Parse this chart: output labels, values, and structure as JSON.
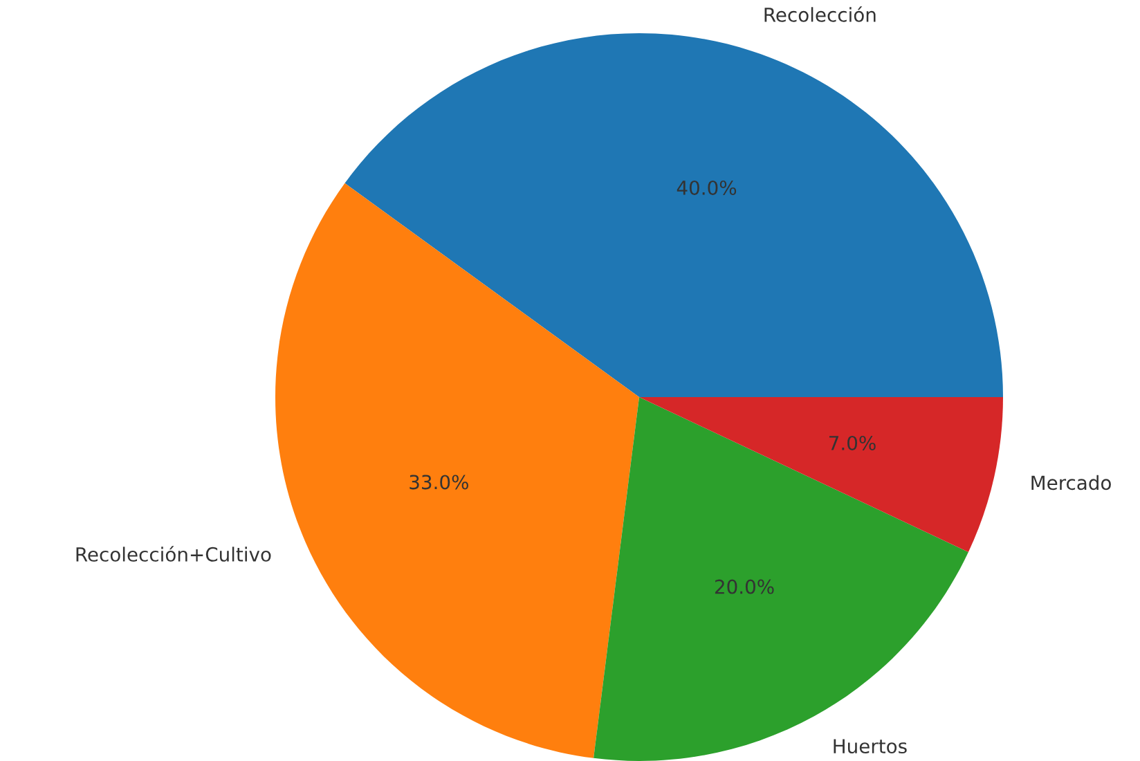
{
  "chart_data": {
    "type": "pie",
    "categories": [
      "Recolección",
      "Recolección+Cultivo",
      "Huertos",
      "Mercado"
    ],
    "values": [
      40,
      33,
      20,
      7
    ],
    "value_labels": [
      "40.0%",
      "33.0%",
      "20.0%",
      "7.0%"
    ],
    "colors": [
      "#1f77b4",
      "#ff7f0e",
      "#2ca02c",
      "#d62728"
    ]
  }
}
